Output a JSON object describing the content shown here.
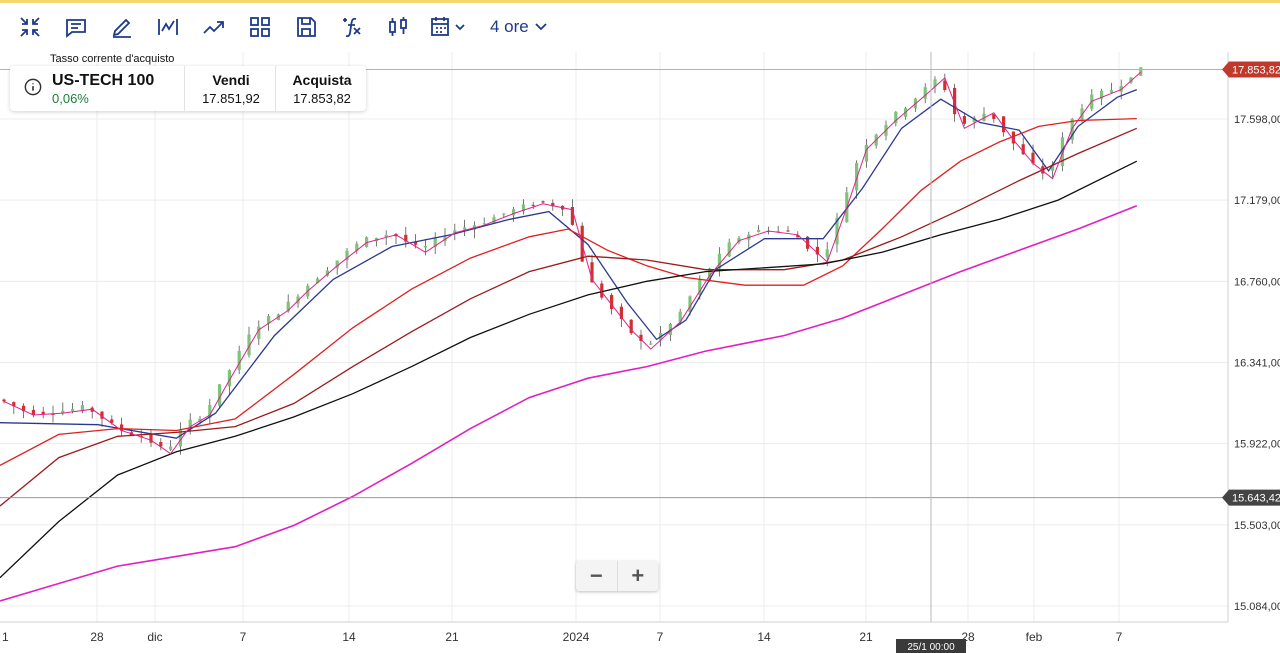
{
  "toolbar": {
    "icons": [
      "collapse-icon",
      "comment-icon",
      "pencil-icon",
      "indicator-icon",
      "trend-icon",
      "layout-icon",
      "save-icon",
      "function-icon",
      "candles-icon",
      "calendar-icon"
    ],
    "interval_label": "4 ore"
  },
  "quote": {
    "caption": "Tasso corrente d'acquisto",
    "symbol": "US-TECH 100",
    "change": "0,06%",
    "sell_label": "Vendi",
    "sell_value": "17.851,92",
    "buy_label": "Acquista",
    "buy_value": "17.853,82"
  },
  "zoom": {
    "minus": "−",
    "plus": "+"
  },
  "colors": {
    "up": "#7cc576",
    "down": "#d32f2f",
    "price_tag": "#c0392b",
    "cursor_tag": "#444444",
    "ma_fast": "#e0218a",
    "ma_blue": "#2b3a8f",
    "ma_red": "#e02020",
    "ma_darkred": "#9b1b1b",
    "ma_black": "#111111",
    "ma_magenta": "#e020c0"
  },
  "chart_data": {
    "type": "candlestick",
    "y_ticks": [
      "17.598,00",
      "17.179,00",
      "16.760,00",
      "16.341,00",
      "15.922,00",
      "15.503,00",
      "15.084,00"
    ],
    "y_tick_values": [
      17598,
      17179,
      16760,
      16341,
      15922,
      15503,
      15084
    ],
    "ylim": [
      15000,
      18050
    ],
    "x_ticks": [
      "1",
      "28",
      "dic",
      "7",
      "14",
      "21",
      "2024",
      "7",
      "14",
      "21",
      "28",
      "feb",
      "7"
    ],
    "current_price_label": "17.853,82",
    "current_price": 17853.82,
    "cursor_price_label": "15.643,42",
    "cursor_price": 15643.42,
    "cursor_time_label": "25/1 00:00",
    "close_path": [
      [
        0,
        16150
      ],
      [
        3,
        16080
      ],
      [
        6,
        16090
      ],
      [
        9,
        16110
      ],
      [
        12,
        16000
      ],
      [
        15,
        15950
      ],
      [
        17,
        15880
      ],
      [
        19,
        16020
      ],
      [
        21,
        16080
      ],
      [
        23,
        16260
      ],
      [
        26,
        16520
      ],
      [
        29,
        16620
      ],
      [
        31,
        16720
      ],
      [
        34,
        16850
      ],
      [
        37,
        16970
      ],
      [
        40,
        17010
      ],
      [
        43,
        16920
      ],
      [
        46,
        17020
      ],
      [
        49,
        17060
      ],
      [
        52,
        17120
      ],
      [
        55,
        17170
      ],
      [
        58,
        17140
      ],
      [
        60,
        16780
      ],
      [
        62,
        16650
      ],
      [
        64,
        16520
      ],
      [
        66,
        16420
      ],
      [
        69,
        16560
      ],
      [
        72,
        16800
      ],
      [
        75,
        16980
      ],
      [
        78,
        17030
      ],
      [
        81,
        17010
      ],
      [
        84,
        16870
      ],
      [
        86,
        17150
      ],
      [
        88,
        17450
      ],
      [
        91,
        17600
      ],
      [
        94,
        17730
      ],
      [
        96,
        17820
      ],
      [
        98,
        17560
      ],
      [
        101,
        17640
      ],
      [
        103,
        17500
      ],
      [
        105,
        17380
      ],
      [
        107,
        17300
      ],
      [
        109,
        17560
      ],
      [
        111,
        17700
      ],
      [
        114,
        17760
      ],
      [
        116,
        17850
      ]
    ],
    "moving_averages": [
      {
        "color_key": "ma_blue",
        "path": [
          [
            0,
            16030
          ],
          [
            10,
            16020
          ],
          [
            18,
            15950
          ],
          [
            22,
            16080
          ],
          [
            28,
            16480
          ],
          [
            34,
            16770
          ],
          [
            40,
            16940
          ],
          [
            46,
            17000
          ],
          [
            52,
            17080
          ],
          [
            56,
            17120
          ],
          [
            60,
            16950
          ],
          [
            64,
            16650
          ],
          [
            67,
            16460
          ],
          [
            70,
            16560
          ],
          [
            73,
            16820
          ],
          [
            78,
            16980
          ],
          [
            84,
            16980
          ],
          [
            88,
            17240
          ],
          [
            92,
            17550
          ],
          [
            96,
            17700
          ],
          [
            100,
            17580
          ],
          [
            104,
            17540
          ],
          [
            107,
            17330
          ],
          [
            110,
            17560
          ],
          [
            114,
            17710
          ],
          [
            116,
            17750
          ]
        ]
      },
      {
        "color_key": "ma_red",
        "path": [
          [
            0,
            15810
          ],
          [
            6,
            15970
          ],
          [
            12,
            16000
          ],
          [
            18,
            15990
          ],
          [
            24,
            16050
          ],
          [
            30,
            16280
          ],
          [
            36,
            16520
          ],
          [
            42,
            16720
          ],
          [
            48,
            16880
          ],
          [
            54,
            16990
          ],
          [
            58,
            17030
          ],
          [
            62,
            16920
          ],
          [
            66,
            16840
          ],
          [
            70,
            16780
          ],
          [
            76,
            16740
          ],
          [
            82,
            16740
          ],
          [
            86,
            16840
          ],
          [
            90,
            17030
          ],
          [
            94,
            17230
          ],
          [
            98,
            17380
          ],
          [
            102,
            17480
          ],
          [
            106,
            17560
          ],
          [
            110,
            17590
          ],
          [
            116,
            17600
          ]
        ]
      },
      {
        "color_key": "ma_darkred",
        "path": [
          [
            0,
            15600
          ],
          [
            6,
            15850
          ],
          [
            12,
            15960
          ],
          [
            18,
            15980
          ],
          [
            24,
            16010
          ],
          [
            30,
            16130
          ],
          [
            36,
            16320
          ],
          [
            42,
            16500
          ],
          [
            48,
            16670
          ],
          [
            54,
            16810
          ],
          [
            60,
            16890
          ],
          [
            66,
            16870
          ],
          [
            72,
            16820
          ],
          [
            80,
            16820
          ],
          [
            86,
            16870
          ],
          [
            92,
            16990
          ],
          [
            98,
            17130
          ],
          [
            104,
            17280
          ],
          [
            110,
            17420
          ],
          [
            116,
            17550
          ]
        ]
      },
      {
        "color_key": "ma_black",
        "path": [
          [
            0,
            15230
          ],
          [
            6,
            15520
          ],
          [
            12,
            15760
          ],
          [
            18,
            15880
          ],
          [
            24,
            15960
          ],
          [
            30,
            16060
          ],
          [
            36,
            16180
          ],
          [
            42,
            16320
          ],
          [
            48,
            16470
          ],
          [
            54,
            16590
          ],
          [
            60,
            16690
          ],
          [
            66,
            16760
          ],
          [
            72,
            16810
          ],
          [
            78,
            16830
          ],
          [
            84,
            16850
          ],
          [
            90,
            16910
          ],
          [
            96,
            17000
          ],
          [
            102,
            17080
          ],
          [
            108,
            17180
          ],
          [
            116,
            17380
          ]
        ]
      },
      {
        "color_key": "ma_magenta",
        "path": [
          [
            0,
            15110
          ],
          [
            6,
            15200
          ],
          [
            12,
            15290
          ],
          [
            18,
            15340
          ],
          [
            24,
            15390
          ],
          [
            30,
            15500
          ],
          [
            36,
            15650
          ],
          [
            42,
            15820
          ],
          [
            48,
            16000
          ],
          [
            54,
            16160
          ],
          [
            60,
            16260
          ],
          [
            66,
            16320
          ],
          [
            72,
            16400
          ],
          [
            80,
            16480
          ],
          [
            86,
            16570
          ],
          [
            92,
            16690
          ],
          [
            98,
            16810
          ],
          [
            104,
            16920
          ],
          [
            110,
            17030
          ],
          [
            116,
            17150
          ]
        ]
      }
    ]
  }
}
